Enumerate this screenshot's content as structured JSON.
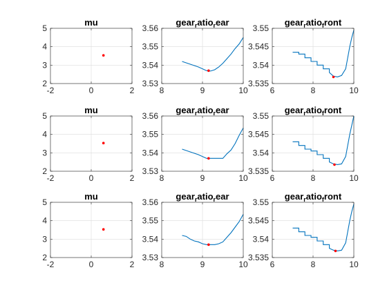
{
  "colors": {
    "line": "#0072BD",
    "marker": "#FF0000"
  },
  "chart_data": [
    {
      "type": "scatter",
      "title": "mu",
      "title_parts": [
        {
          "t": "mu",
          "sub": false
        }
      ],
      "xlim": [
        -2,
        2
      ],
      "ylim": [
        2,
        5
      ],
      "grid": true,
      "xticks": [
        -2,
        0,
        2
      ],
      "yticks": [
        2,
        3,
        4,
        5
      ],
      "xticklabels": [
        "-2",
        "0",
        "2"
      ],
      "yticklabels": [
        "2",
        "3",
        "4",
        "5"
      ],
      "series": [],
      "marker": {
        "x": 0.6,
        "y": 3.53
      }
    },
    {
      "type": "line",
      "title": "gear_ratio_rear",
      "title_parts": [
        {
          "t": "gear",
          "sub": false
        },
        {
          "t": "r",
          "sub": true
        },
        {
          "t": "atio",
          "sub": false
        },
        {
          "t": "r",
          "sub": true
        },
        {
          "t": "ear",
          "sub": false
        }
      ],
      "xlim": [
        8,
        10
      ],
      "ylim": [
        3.53,
        3.56
      ],
      "grid": true,
      "xticks": [
        8,
        9,
        10
      ],
      "yticks": [
        3.53,
        3.54,
        3.55,
        3.56
      ],
      "xticklabels": [
        "8",
        "9",
        "10"
      ],
      "yticklabels": [
        "3.53",
        "3.54",
        "3.55",
        "3.56"
      ],
      "series": [
        {
          "x": [
            8.5,
            8.7,
            8.9,
            9.1,
            9.2,
            9.3,
            9.4,
            9.5,
            9.6,
            9.7,
            9.8,
            9.9,
            10.0
          ],
          "y": [
            3.542,
            3.5405,
            3.539,
            3.537,
            3.5368,
            3.5375,
            3.539,
            3.541,
            3.5435,
            3.546,
            3.549,
            3.5515,
            3.555
          ]
        }
      ],
      "marker": {
        "x": 9.15,
        "y": 3.537
      }
    },
    {
      "type": "line",
      "title": "gear_ratio_front",
      "title_parts": [
        {
          "t": "gear",
          "sub": false
        },
        {
          "t": "r",
          "sub": true
        },
        {
          "t": "atio",
          "sub": false
        },
        {
          "t": "f",
          "sub": true
        },
        {
          "t": "ront",
          "sub": false
        }
      ],
      "xlim": [
        6,
        10
      ],
      "ylim": [
        3.535,
        3.55
      ],
      "grid": true,
      "xticks": [
        6,
        8,
        10
      ],
      "yticks": [
        3.535,
        3.54,
        3.545,
        3.55
      ],
      "xticklabels": [
        "6",
        "8",
        "10"
      ],
      "yticklabels": [
        "3.535",
        "3.54",
        "3.545",
        "3.55"
      ],
      "series": [
        {
          "x": [
            7.0,
            7.3,
            7.3,
            7.6,
            7.6,
            7.9,
            7.9,
            8.2,
            8.2,
            8.5,
            8.5,
            8.8,
            8.8,
            9.0,
            9.2,
            9.4,
            9.6,
            9.7,
            9.8,
            9.9,
            10.0
          ],
          "y": [
            3.5435,
            3.5435,
            3.543,
            3.543,
            3.542,
            3.542,
            3.541,
            3.541,
            3.54,
            3.54,
            3.539,
            3.539,
            3.538,
            3.537,
            3.5368,
            3.5372,
            3.539,
            3.542,
            3.545,
            3.5475,
            3.5495
          ]
        }
      ],
      "marker": {
        "x": 9.0,
        "y": 3.5368
      }
    },
    {
      "type": "scatter",
      "title": "mu",
      "title_parts": [
        {
          "t": "mu",
          "sub": false
        }
      ],
      "xlim": [
        -2,
        2
      ],
      "ylim": [
        2,
        5
      ],
      "grid": true,
      "xticks": [
        -2,
        0,
        2
      ],
      "yticks": [
        2,
        3,
        4,
        5
      ],
      "xticklabels": [
        "-2",
        "0",
        "2"
      ],
      "yticklabels": [
        "2",
        "3",
        "4",
        "5"
      ],
      "series": [],
      "marker": {
        "x": 0.6,
        "y": 3.53
      }
    },
    {
      "type": "line",
      "title": "gear_ratio_rear",
      "title_parts": [
        {
          "t": "gear",
          "sub": false
        },
        {
          "t": "r",
          "sub": true
        },
        {
          "t": "atio",
          "sub": false
        },
        {
          "t": "r",
          "sub": true
        },
        {
          "t": "ear",
          "sub": false
        }
      ],
      "xlim": [
        8,
        10
      ],
      "ylim": [
        3.53,
        3.56
      ],
      "grid": true,
      "xticks": [
        8,
        9,
        10
      ],
      "yticks": [
        3.53,
        3.54,
        3.55,
        3.56
      ],
      "xticklabels": [
        "8",
        "9",
        "10"
      ],
      "yticklabels": [
        "3.53",
        "3.54",
        "3.55",
        "3.56"
      ],
      "series": [
        {
          "x": [
            8.5,
            8.7,
            8.9,
            9.1,
            9.3,
            9.5,
            9.6,
            9.7,
            9.8,
            9.9,
            10.0
          ],
          "y": [
            3.542,
            3.5405,
            3.539,
            3.537,
            3.537,
            3.537,
            3.5395,
            3.5415,
            3.545,
            3.5495,
            3.5535
          ]
        }
      ],
      "marker": {
        "x": 9.15,
        "y": 3.537
      }
    },
    {
      "type": "line",
      "title": "gear_ratio_front",
      "title_parts": [
        {
          "t": "gear",
          "sub": false
        },
        {
          "t": "r",
          "sub": true
        },
        {
          "t": "atio",
          "sub": false
        },
        {
          "t": "f",
          "sub": true
        },
        {
          "t": "ront",
          "sub": false
        }
      ],
      "xlim": [
        6,
        10
      ],
      "ylim": [
        3.535,
        3.55
      ],
      "grid": true,
      "xticks": [
        6,
        8,
        10
      ],
      "yticks": [
        3.535,
        3.54,
        3.545,
        3.55
      ],
      "xticklabels": [
        "6",
        "8",
        "10"
      ],
      "yticklabels": [
        "3.535",
        "3.54",
        "3.545",
        "3.55"
      ],
      "series": [
        {
          "x": [
            7.0,
            7.3,
            7.3,
            7.6,
            7.6,
            7.9,
            7.9,
            8.2,
            8.2,
            8.5,
            8.5,
            8.8,
            8.8,
            9.0,
            9.2,
            9.4,
            9.6,
            9.7,
            9.8,
            9.9,
            10.0
          ],
          "y": [
            3.543,
            3.543,
            3.542,
            3.542,
            3.541,
            3.541,
            3.5405,
            3.5405,
            3.5395,
            3.5395,
            3.5385,
            3.5385,
            3.5375,
            3.537,
            3.5368,
            3.537,
            3.539,
            3.542,
            3.545,
            3.5475,
            3.55
          ]
        }
      ],
      "marker": {
        "x": 9.05,
        "y": 3.5368
      }
    },
    {
      "type": "scatter",
      "title": "mu",
      "title_parts": [
        {
          "t": "mu",
          "sub": false
        }
      ],
      "xlim": [
        -2,
        2
      ],
      "ylim": [
        2,
        5
      ],
      "grid": true,
      "xticks": [
        -2,
        0,
        2
      ],
      "yticks": [
        2,
        3,
        4,
        5
      ],
      "xticklabels": [
        "-2",
        "0",
        "2"
      ],
      "yticklabels": [
        "2",
        "3",
        "4",
        "5"
      ],
      "series": [],
      "marker": {
        "x": 0.6,
        "y": 3.53
      }
    },
    {
      "type": "line",
      "title": "gear_ratio_rear",
      "title_parts": [
        {
          "t": "gear",
          "sub": false
        },
        {
          "t": "r",
          "sub": true
        },
        {
          "t": "atio",
          "sub": false
        },
        {
          "t": "r",
          "sub": true
        },
        {
          "t": "ear",
          "sub": false
        }
      ],
      "xlim": [
        8,
        10
      ],
      "ylim": [
        3.53,
        3.56
      ],
      "grid": true,
      "xticks": [
        8,
        9,
        10
      ],
      "yticks": [
        3.53,
        3.54,
        3.55,
        3.56
      ],
      "xticklabels": [
        "8",
        "9",
        "10"
      ],
      "yticklabels": [
        "3.53",
        "3.54",
        "3.55",
        "3.56"
      ],
      "series": [
        {
          "x": [
            8.5,
            8.6,
            8.7,
            8.8,
            8.9,
            9.0,
            9.1,
            9.2,
            9.3,
            9.4,
            9.5,
            9.6,
            9.7,
            9.8,
            9.9,
            10.0
          ],
          "y": [
            3.542,
            3.5415,
            3.54,
            3.539,
            3.5385,
            3.5375,
            3.537,
            3.537,
            3.537,
            3.5375,
            3.5385,
            3.541,
            3.5435,
            3.5465,
            3.5495,
            3.5535
          ]
        }
      ],
      "marker": {
        "x": 9.15,
        "y": 3.537
      }
    },
    {
      "type": "line",
      "title": "gear_ratio_front",
      "title_parts": [
        {
          "t": "gear",
          "sub": false
        },
        {
          "t": "r",
          "sub": true
        },
        {
          "t": "atio",
          "sub": false
        },
        {
          "t": "f",
          "sub": true
        },
        {
          "t": "ront",
          "sub": false
        }
      ],
      "xlim": [
        6,
        10
      ],
      "ylim": [
        3.535,
        3.55
      ],
      "grid": true,
      "xticks": [
        6,
        8,
        10
      ],
      "yticks": [
        3.535,
        3.54,
        3.545,
        3.55
      ],
      "xticklabels": [
        "6",
        "8",
        "10"
      ],
      "yticklabels": [
        "3.535",
        "3.54",
        "3.545",
        "3.55"
      ],
      "series": [
        {
          "x": [
            7.0,
            7.3,
            7.3,
            7.6,
            7.6,
            7.9,
            7.9,
            8.2,
            8.2,
            8.5,
            8.5,
            8.8,
            8.8,
            9.0,
            9.2,
            9.4,
            9.6,
            9.7,
            9.8,
            9.9,
            10.0
          ],
          "y": [
            3.543,
            3.543,
            3.542,
            3.542,
            3.541,
            3.541,
            3.5405,
            3.5405,
            3.5395,
            3.5395,
            3.5385,
            3.5385,
            3.5375,
            3.537,
            3.5368,
            3.537,
            3.539,
            3.542,
            3.545,
            3.5475,
            3.5495
          ]
        }
      ],
      "marker": {
        "x": 9.1,
        "y": 3.5368
      }
    }
  ]
}
